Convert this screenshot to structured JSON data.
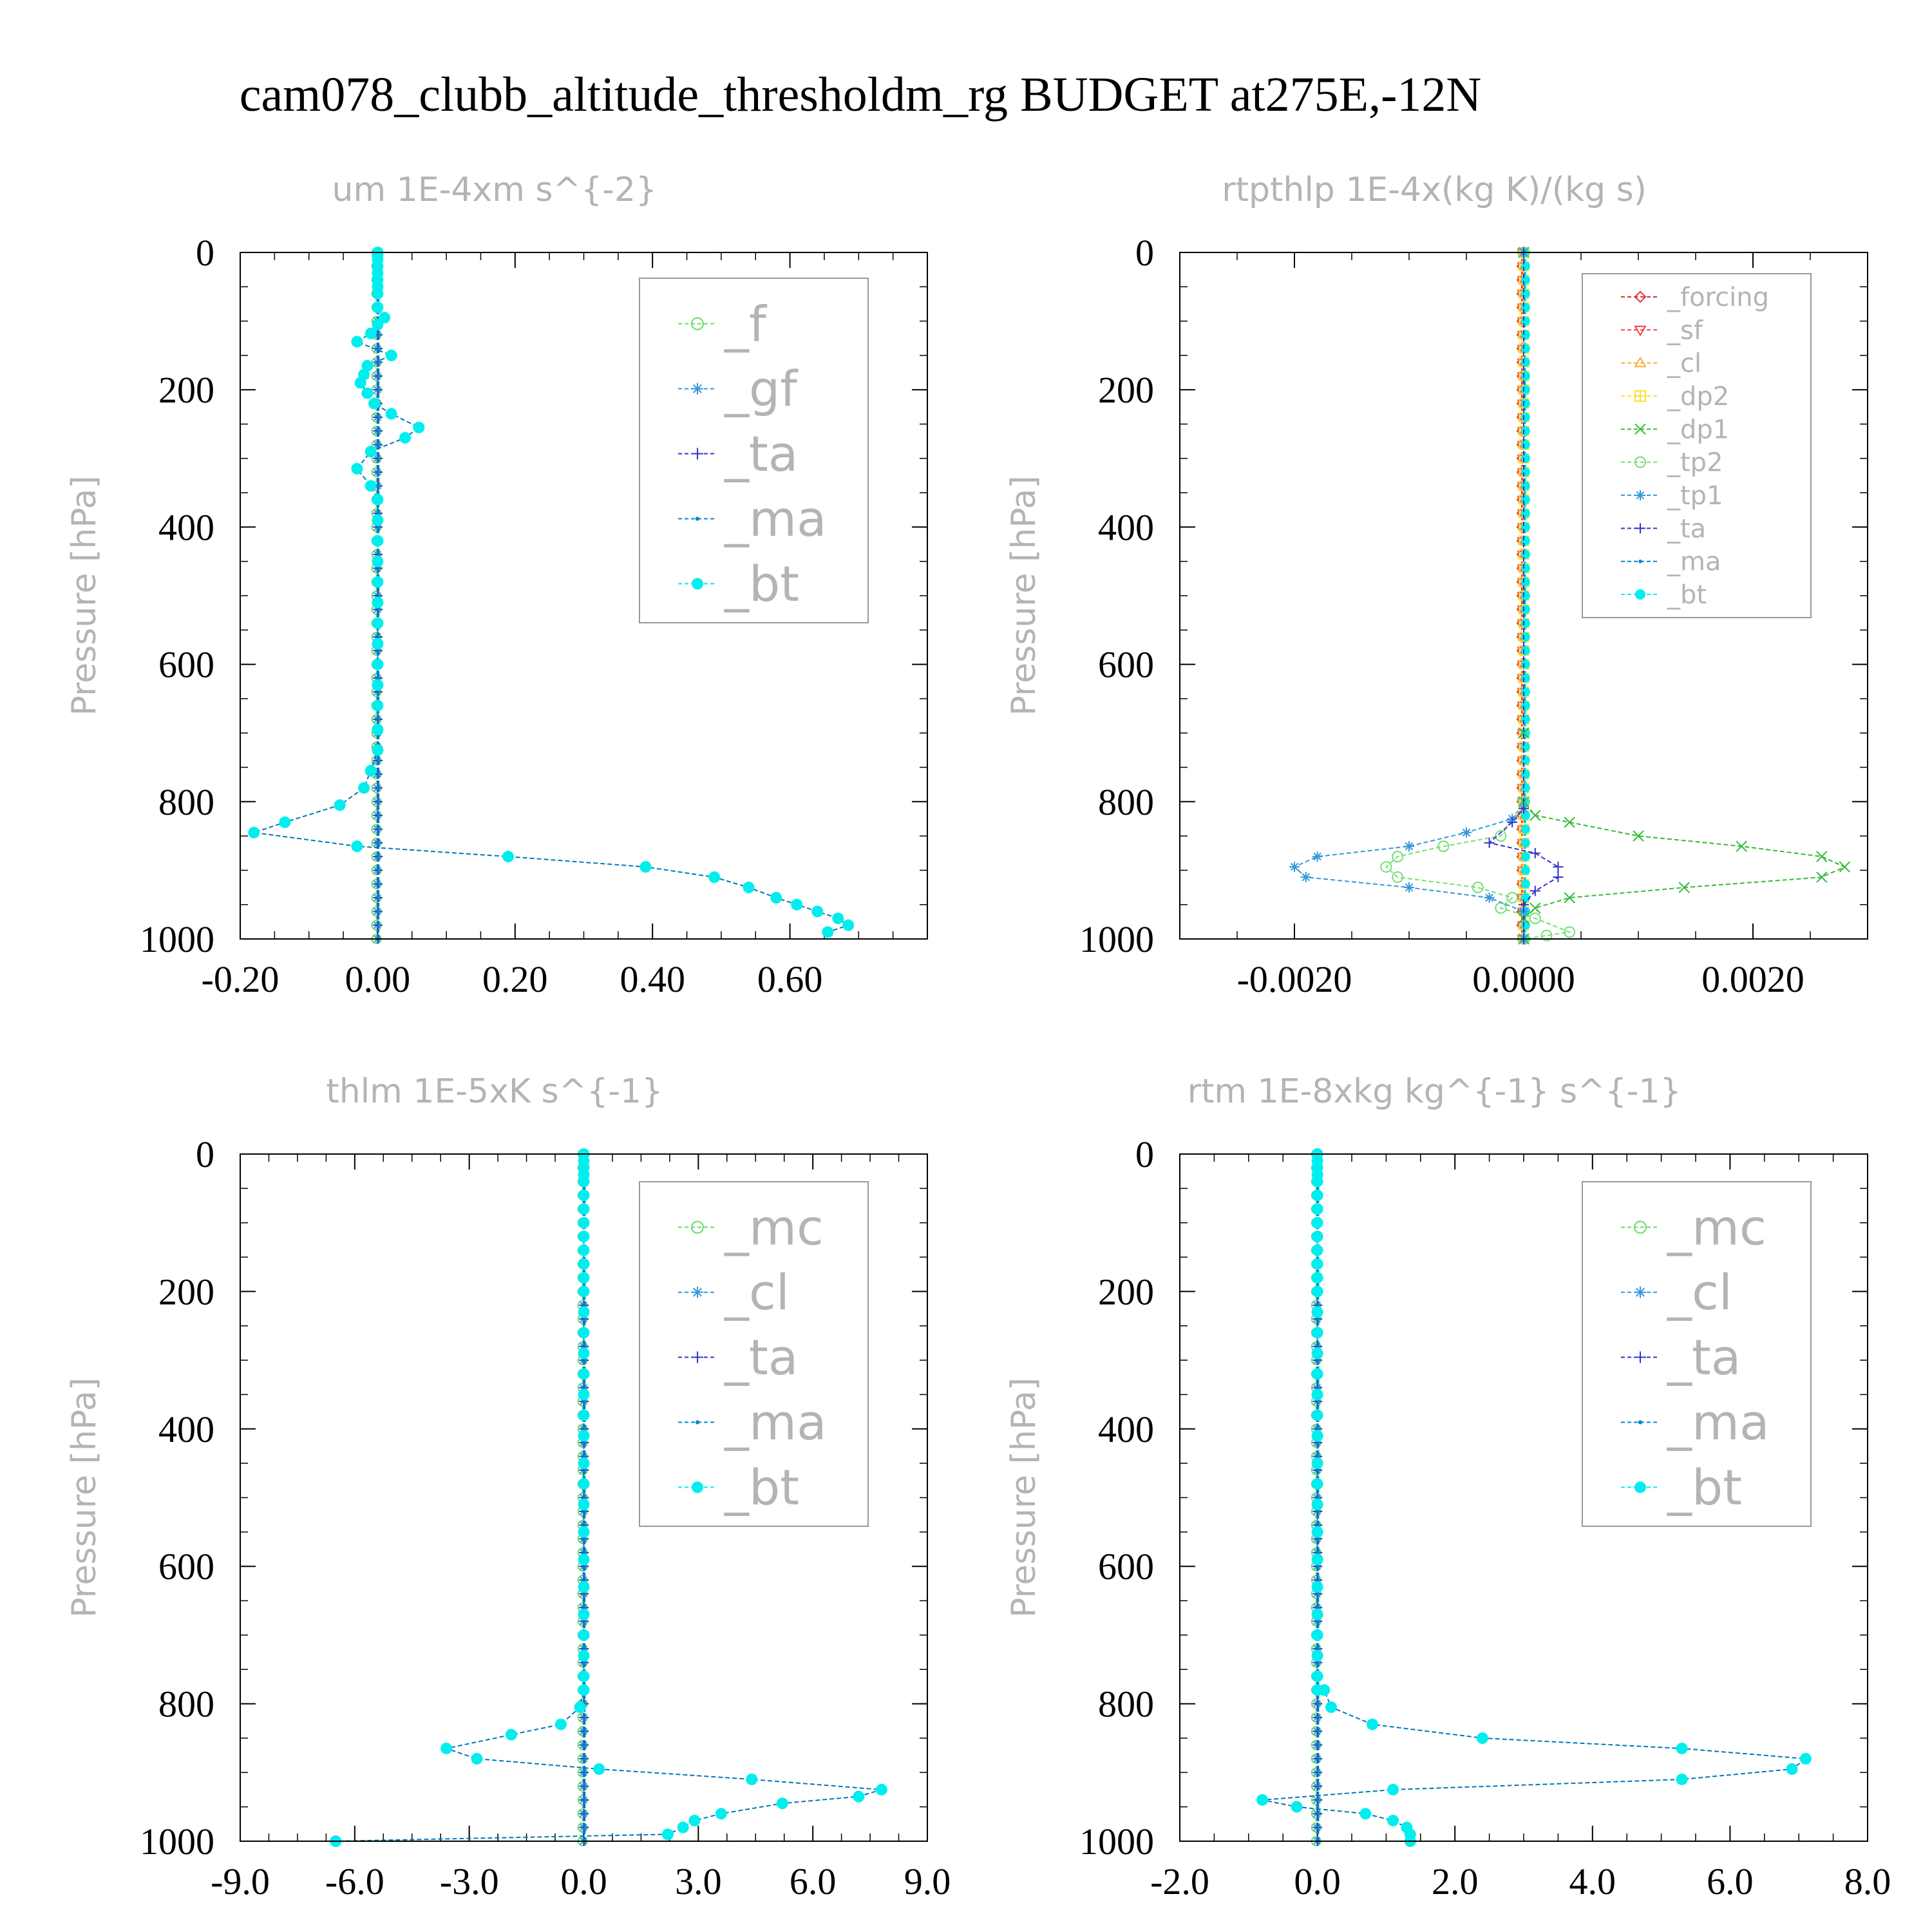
{
  "title": "cam078_clubb_altitude_thresholdm_rg  BUDGET at275E,-12N",
  "chart_data": [
    {
      "type": "line",
      "title": "um  1E-4xm s^{-2}",
      "ylabel": "Pressure [hPa]",
      "xlim": [
        -0.2,
        0.8
      ],
      "ylim": [
        1000,
        0
      ],
      "xticks": [
        "-0.20",
        "0.00",
        "0.20",
        "0.40",
        "0.60"
      ],
      "xtick_values": [
        -0.2,
        0.0,
        0.2,
        0.4,
        0.6
      ],
      "yticks": [
        "0",
        "200",
        "400",
        "600",
        "800",
        "1000"
      ],
      "ytick_values": [
        0,
        200,
        400,
        600,
        800,
        1000
      ],
      "legend_position": "top-right",
      "series": [
        {
          "name": "_f",
          "color": "#66dd66",
          "marker": "circle-open"
        },
        {
          "name": "_gf",
          "color": "#3399dd",
          "marker": "star"
        },
        {
          "name": "_ta",
          "color": "#3333cc",
          "marker": "plus"
        },
        {
          "name": "_ma",
          "color": "#0088cc",
          "marker": "dot"
        },
        {
          "name": "_bt",
          "color": "#00eeee",
          "marker": "circle-filled",
          "x": [
            0.0,
            0.0,
            0.0,
            0.0,
            0.0,
            0.0,
            0.0,
            0.0,
            0.0,
            0.01,
            0.0,
            -0.01,
            -0.03,
            0.02,
            -0.015,
            -0.02,
            -0.025,
            -0.015,
            -0.005,
            0.02,
            0.06,
            0.04,
            -0.01,
            -0.03,
            -0.01,
            0.0,
            0.0,
            0.0,
            0.0,
            0.0,
            0.0,
            0.0,
            0.0,
            0.0,
            0.0,
            0.0,
            0.0,
            0.0,
            -0.01,
            -0.02,
            -0.055,
            -0.135,
            -0.18,
            -0.03,
            0.19,
            0.39,
            0.49,
            0.54,
            0.58,
            0.61,
            0.64,
            0.67,
            0.685,
            0.655
          ],
          "y": [
            0,
            5,
            10,
            20,
            30,
            40,
            50,
            60,
            80,
            95,
            105,
            118,
            130,
            150,
            165,
            178,
            190,
            205,
            220,
            235,
            255,
            270,
            290,
            315,
            340,
            360,
            390,
            420,
            450,
            480,
            510,
            540,
            570,
            600,
            630,
            660,
            695,
            725,
            755,
            780,
            805,
            830,
            845,
            865,
            880,
            895,
            910,
            925,
            940,
            950,
            960,
            970,
            980,
            990
          ]
        }
      ]
    },
    {
      "type": "line",
      "title": "rtpthlp  1E-4x(kg K)/(kg s)",
      "ylabel": "Pressure [hPa]",
      "xlim": [
        -0.003,
        0.003
      ],
      "ylim": [
        1000,
        0
      ],
      "xticks": [
        "-0.0020",
        "0.0000",
        "0.0020"
      ],
      "xtick_values": [
        -0.002,
        0.0,
        0.002
      ],
      "yticks": [
        "0",
        "200",
        "400",
        "600",
        "800",
        "1000"
      ],
      "ytick_values": [
        0,
        200,
        400,
        600,
        800,
        1000
      ],
      "legend_position": "top-right",
      "series": [
        {
          "name": "_forcing",
          "color": "#dd3333",
          "marker": "diamond"
        },
        {
          "name": "_sf",
          "color": "#ee4444",
          "marker": "triangle-down"
        },
        {
          "name": "_cl",
          "color": "#ffaa33",
          "marker": "triangle-up"
        },
        {
          "name": "_dp2",
          "color": "#ffdd33",
          "marker": "square-plus"
        },
        {
          "name": "_dp1",
          "color": "#33bb33",
          "marker": "cross",
          "x": [
            0.0,
            0.0,
            0.0,
            0.0001,
            0.0004,
            0.001,
            0.0019,
            0.0026,
            0.0028,
            0.0026,
            0.0014,
            0.0004,
            0.0001,
            0.0,
            0.0
          ],
          "y": [
            0,
            700,
            800,
            820,
            830,
            850,
            865,
            880,
            895,
            910,
            925,
            940,
            955,
            970,
            1000
          ]
        },
        {
          "name": "_tp2",
          "color": "#77dd77",
          "marker": "circle-open",
          "x": [
            0.0,
            0.0,
            -0.0002,
            -0.0007,
            -0.0011,
            -0.0012,
            -0.0011,
            -0.0004,
            -0.0001,
            -0.0002,
            0.0001,
            0.0004,
            0.0002,
            0.0
          ],
          "y": [
            0,
            800,
            850,
            865,
            880,
            895,
            910,
            925,
            940,
            955,
            970,
            990,
            995,
            1000
          ]
        },
        {
          "name": "_tp1",
          "color": "#3399dd",
          "marker": "star",
          "x": [
            0.0,
            0.0,
            -0.0001,
            -0.0005,
            -0.001,
            -0.0018,
            -0.002,
            -0.0019,
            -0.001,
            -0.0003,
            0.0,
            0.0
          ],
          "y": [
            0,
            810,
            825,
            845,
            865,
            880,
            895,
            910,
            925,
            940,
            960,
            1000
          ]
        },
        {
          "name": "_ta",
          "color": "#3333cc",
          "marker": "plus",
          "x": [
            0.0,
            0.0,
            -0.0001,
            -0.0003,
            0.0001,
            0.0003,
            0.0003,
            0.0001,
            0.0,
            0.0
          ],
          "y": [
            0,
            810,
            830,
            860,
            875,
            895,
            910,
            930,
            950,
            1000
          ]
        },
        {
          "name": "_ma",
          "color": "#0088cc",
          "marker": "dot"
        },
        {
          "name": "_bt",
          "color": "#00eeee",
          "marker": "circle-filled"
        }
      ]
    },
    {
      "type": "line",
      "title": "thlm  1E-5xK s^{-1}",
      "ylabel": "Pressure [hPa]",
      "xlim": [
        -9.0,
        9.0
      ],
      "ylim": [
        1000,
        0
      ],
      "xticks": [
        "-9.0",
        "-6.0",
        "-3.0",
        "0.0",
        "3.0",
        "6.0",
        "9.0"
      ],
      "xtick_values": [
        -9.0,
        -6.0,
        -3.0,
        0.0,
        3.0,
        6.0,
        9.0
      ],
      "yticks": [
        "0",
        "200",
        "400",
        "600",
        "800",
        "1000"
      ],
      "ytick_values": [
        0,
        200,
        400,
        600,
        800,
        1000
      ],
      "legend_position": "top-right",
      "series": [
        {
          "name": "_mc",
          "color": "#66dd66",
          "marker": "circle-open"
        },
        {
          "name": "_cl",
          "color": "#3399dd",
          "marker": "star"
        },
        {
          "name": "_ta",
          "color": "#3333cc",
          "marker": "plus"
        },
        {
          "name": "_ma",
          "color": "#0088cc",
          "marker": "dot"
        },
        {
          "name": "_bt",
          "color": "#00eeee",
          "marker": "circle-filled",
          "x": [
            0.0,
            0.0,
            0.0,
            0.0,
            0.0,
            0.0,
            0.0,
            0.0,
            0.0,
            0.0,
            0.0,
            0.0,
            0.0,
            0.0,
            0.0,
            0.0,
            0.0,
            0.0,
            0.0,
            0.0,
            0.0,
            0.0,
            0.0,
            0.0,
            0.0,
            0.0,
            0.0,
            0.0,
            0.0,
            0.0,
            0.0,
            -0.1,
            -0.6,
            -1.9,
            -3.6,
            -2.8,
            0.4,
            4.4,
            7.8,
            7.2,
            5.2,
            3.6,
            2.9,
            2.6,
            2.2,
            -6.5
          ],
          "y": [
            0,
            10,
            20,
            30,
            40,
            60,
            80,
            100,
            120,
            140,
            160,
            180,
            200,
            230,
            260,
            290,
            320,
            350,
            380,
            410,
            450,
            480,
            510,
            550,
            590,
            630,
            670,
            700,
            730,
            760,
            780,
            805,
            830,
            845,
            865,
            880,
            895,
            910,
            925,
            935,
            945,
            960,
            970,
            980,
            990,
            1000
          ]
        }
      ]
    },
    {
      "type": "line",
      "title": "rtm  1E-8xkg kg^{-1} s^{-1}",
      "ylabel": "Pressure [hPa]",
      "xlim": [
        -2.0,
        8.0
      ],
      "ylim": [
        1000,
        0
      ],
      "xticks": [
        "-2.0",
        "0.0",
        "2.0",
        "4.0",
        "6.0",
        "8.0"
      ],
      "xtick_values": [
        -2.0,
        0.0,
        2.0,
        4.0,
        6.0,
        8.0
      ],
      "yticks": [
        "0",
        "200",
        "400",
        "600",
        "800",
        "1000"
      ],
      "ytick_values": [
        0,
        200,
        400,
        600,
        800,
        1000
      ],
      "legend_position": "top-right",
      "series": [
        {
          "name": "_mc",
          "color": "#66dd66",
          "marker": "circle-open"
        },
        {
          "name": "_cl",
          "color": "#3399dd",
          "marker": "star"
        },
        {
          "name": "_ta",
          "color": "#3333cc",
          "marker": "plus"
        },
        {
          "name": "_ma",
          "color": "#0088cc",
          "marker": "dot"
        },
        {
          "name": "_bt",
          "color": "#00eeee",
          "marker": "circle-filled",
          "x": [
            0.0,
            0.0,
            0.0,
            0.0,
            0.0,
            0.0,
            0.0,
            0.0,
            0.0,
            0.0,
            0.0,
            0.0,
            0.0,
            0.0,
            0.0,
            0.0,
            0.0,
            0.0,
            0.0,
            0.0,
            0.0,
            0.0,
            0.0,
            0.0,
            0.0,
            0.0,
            0.0,
            0.0,
            0.0,
            0.0,
            0.0,
            0.1,
            0.2,
            0.8,
            2.4,
            5.3,
            7.1,
            6.9,
            5.3,
            1.1,
            -0.8,
            -0.3,
            0.7,
            1.1,
            1.3,
            1.35,
            1.35
          ],
          "y": [
            0,
            10,
            20,
            30,
            40,
            60,
            80,
            100,
            120,
            140,
            160,
            180,
            200,
            230,
            260,
            290,
            320,
            350,
            380,
            410,
            450,
            480,
            510,
            550,
            590,
            630,
            670,
            700,
            730,
            760,
            780,
            780,
            805,
            830,
            850,
            865,
            880,
            895,
            910,
            925,
            940,
            950,
            960,
            970,
            980,
            990,
            1000
          ]
        }
      ]
    }
  ]
}
